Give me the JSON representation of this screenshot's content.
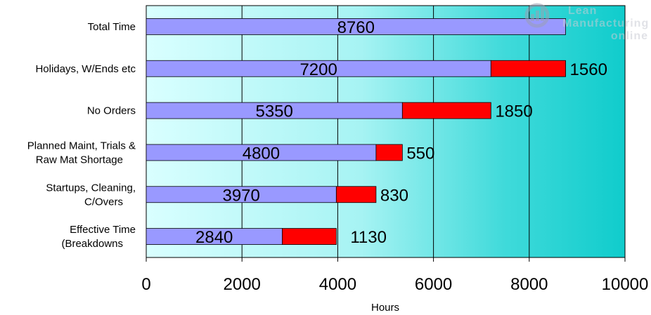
{
  "chart_data": {
    "type": "bar",
    "orientation": "horizontal",
    "stacked": true,
    "categories": [
      "Total Time",
      "Holidays, W/Ends etc",
      "No Orders",
      "Planned Maint, Trials & Raw Mat Shortage",
      "Startups, Cleaning, C/Overs",
      "Effective Time (Breakdowns"
    ],
    "category_lines": [
      [
        "Total Time"
      ],
      [
        "Holidays, W/Ends etc"
      ],
      [
        "No Orders"
      ],
      [
        "Planned Maint, Trials &",
        "Raw Mat Shortage"
      ],
      [
        "Startups, Cleaning,",
        "C/Overs"
      ],
      [
        "Effective Time",
        "(Breakdowns"
      ]
    ],
    "series": [
      {
        "values": [
          8760,
          7200,
          5350,
          4800,
          3970,
          2840
        ],
        "color": "#9999ff"
      },
      {
        "values": [
          0,
          1560,
          1850,
          550,
          830,
          1130
        ],
        "color": "#ff0000"
      }
    ],
    "data_labels": {
      "base": [
        "8760",
        "7200",
        "5350",
        "4800",
        "3970",
        "2840"
      ],
      "loss": [
        "",
        "1560",
        "1850",
        "550",
        "830",
        "1130"
      ]
    },
    "xlim": [
      0,
      10000
    ],
    "xticks": [
      0,
      2000,
      4000,
      6000,
      8000,
      10000
    ],
    "tick_labels": [
      "0",
      "2000",
      "4000",
      "6000",
      "8000",
      "10000"
    ],
    "xlabel": "Hours",
    "ylabel": "",
    "title": "",
    "grid": true,
    "background": "gradient light cyan to teal",
    "legend": "none"
  },
  "watermark": {
    "lines": [
      "Lean",
      "Manufacturing",
      "online"
    ],
    "icon": "gear-chart-icon",
    "color": "#c9ccd4"
  }
}
